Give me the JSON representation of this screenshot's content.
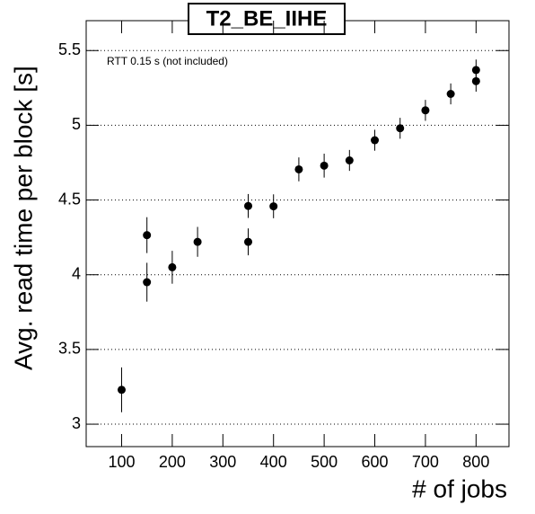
{
  "chart_data": {
    "type": "scatter",
    "title": "T2_BE_IIHE",
    "annotation": "RTT 0.15 s (not included)",
    "x_label": "# of jobs",
    "y_label": "Avg. read time per block [s]",
    "x": [
      100,
      150,
      150,
      200,
      250,
      350,
      350,
      400,
      450,
      500,
      550,
      600,
      650,
      700,
      750,
      800,
      800
    ],
    "values": [
      3.23,
      3.95,
      4.265,
      4.05,
      4.22,
      4.46,
      4.22,
      4.458,
      4.705,
      4.73,
      4.765,
      4.9,
      4.98,
      5.1,
      5.21,
      5.295,
      5.37
    ],
    "errors": [
      0.15,
      0.13,
      0.12,
      0.11,
      0.1,
      0.08,
      0.09,
      0.08,
      0.08,
      0.08,
      0.07,
      0.07,
      0.07,
      0.07,
      0.07,
      0.07,
      0.07
    ],
    "color": "#000000",
    "xlim": [
      30,
      865
    ],
    "xticks": [
      100,
      200,
      300,
      400,
      500,
      600,
      700,
      800
    ],
    "ylim": [
      2.85,
      5.7
    ],
    "yticks": [
      3,
      3.5,
      4,
      4.5,
      5,
      5.5
    ],
    "grid": true
  }
}
